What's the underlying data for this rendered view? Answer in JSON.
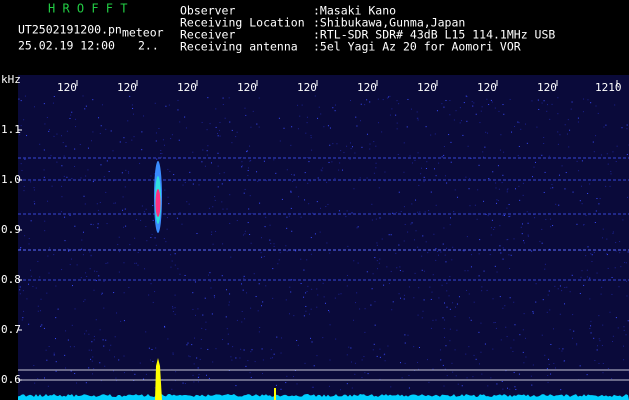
{
  "header": {
    "app": "H R O F F T",
    "file": "UT2502191200.pn",
    "tag": "meteor",
    "datetime": "25.02.19 12:00",
    "extra": "2..",
    "fields": [
      {
        "label": "Observer",
        "value": ":Masaki Kano"
      },
      {
        "label": "Receiving Location",
        "value": ":Shibukawa,Gunma,Japan"
      },
      {
        "label": "Receiver",
        "value": ":RTL-SDR SDR# 43dB L15 114.1MHz USB"
      },
      {
        "label": "Receiving antenna",
        "value": ":5el Yagi Az 20 for Aomori VOR"
      }
    ]
  },
  "spectrogram": {
    "unit": "kHz",
    "y_labels": [
      "1.1",
      "1.0",
      "0.9",
      "0.8",
      "0.7",
      "0.6"
    ],
    "x_labels": [
      "120",
      "120",
      "120",
      "120",
      "120",
      "120",
      "120",
      "120",
      "120",
      "1210"
    ]
  }
}
